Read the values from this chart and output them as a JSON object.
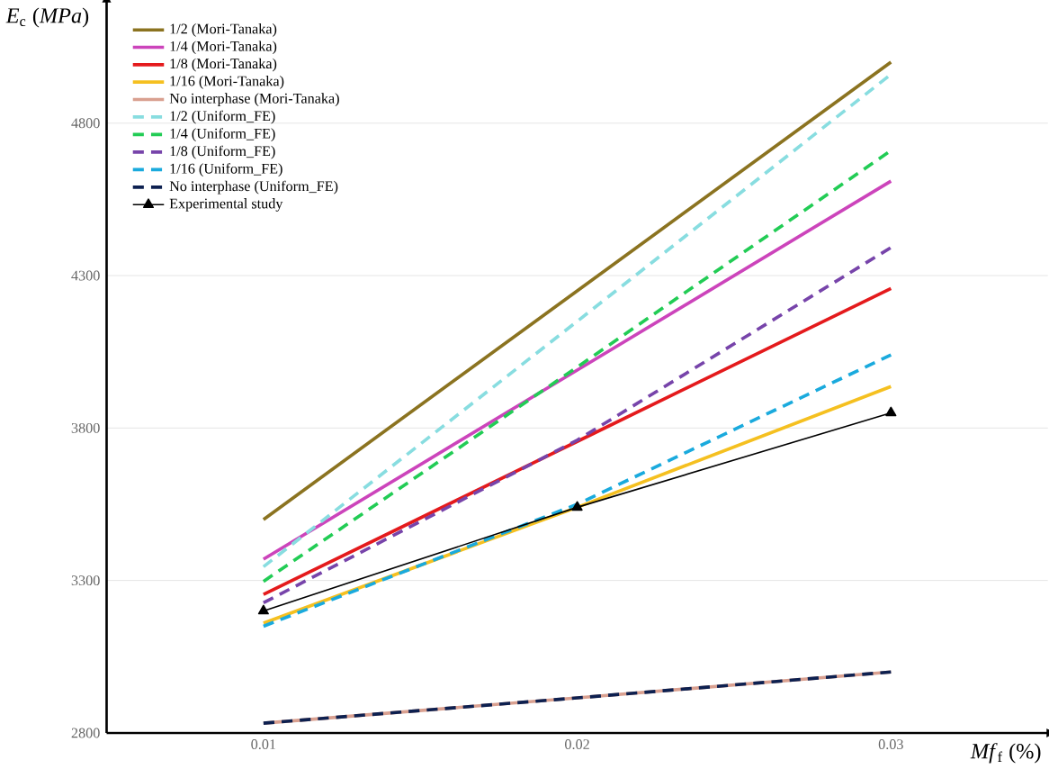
{
  "chart_data": {
    "type": "line",
    "xlabel": "*Mf*$_{f}$ (%)",
    "ylabel": "*E*$_{c}$ (*MPa*)",
    "x": [
      0.01,
      0.02,
      0.03
    ],
    "xlim": [
      0.005,
      0.035
    ],
    "xticks": [
      0.01,
      0.02,
      0.03
    ],
    "ylim": [
      2800,
      5200
    ],
    "yticks": [
      2800,
      3300,
      3800,
      4300,
      4800
    ],
    "grid": "y",
    "legend": "top left",
    "series": [
      {
        "name": "1/2 (Mori-Tanaka)",
        "color": "#8b7320",
        "values": [
          3500,
          4250,
          5000
        ]
      },
      {
        "name": "1/4 (Mori-Tanaka)",
        "color": "#cc44bb",
        "values": [
          3370,
          3990,
          4610
        ]
      },
      {
        "name": "1/8 (Mori-Tanaka)",
        "color": "#e41a1c",
        "values": [
          3254,
          3756,
          4258
        ]
      },
      {
        "name": "1/16 (Mori-Tanaka)",
        "color": "#f5c020",
        "values": [
          3160,
          3540,
          3936
        ]
      },
      {
        "name": "No interphase (Mori-Tanaka)",
        "color": "#d9a090",
        "values": [
          2832,
          2915,
          3000
        ]
      },
      {
        "name": "1/2 (Uniform_FE)",
        "color": "#88dde0",
        "line_style": "dashed",
        "values": [
          3345,
          4150,
          4960
        ]
      },
      {
        "name": "1/4 (Uniform_FE)",
        "color": "#22cc55",
        "line_style": "dashed",
        "values": [
          3297,
          4000,
          4710
        ]
      },
      {
        "name": "1/8 (Uniform_FE)",
        "color": "#7744aa",
        "line_style": "dashed",
        "values": [
          3227,
          3760,
          4392
        ]
      },
      {
        "name": "1/16 (Uniform_FE)",
        "color": "#1aaadd",
        "line_style": "dashed",
        "values": [
          3150,
          3550,
          4040
        ]
      },
      {
        "name": "No interphase (Uniform_FE)",
        "color": "#0d2050",
        "line_style": "dashed",
        "values": [
          2832,
          2915,
          3000
        ]
      },
      {
        "name": "Experimental study",
        "color": "#000000",
        "marker": "triangle",
        "values": [
          3200,
          3540,
          3850
        ]
      }
    ]
  }
}
